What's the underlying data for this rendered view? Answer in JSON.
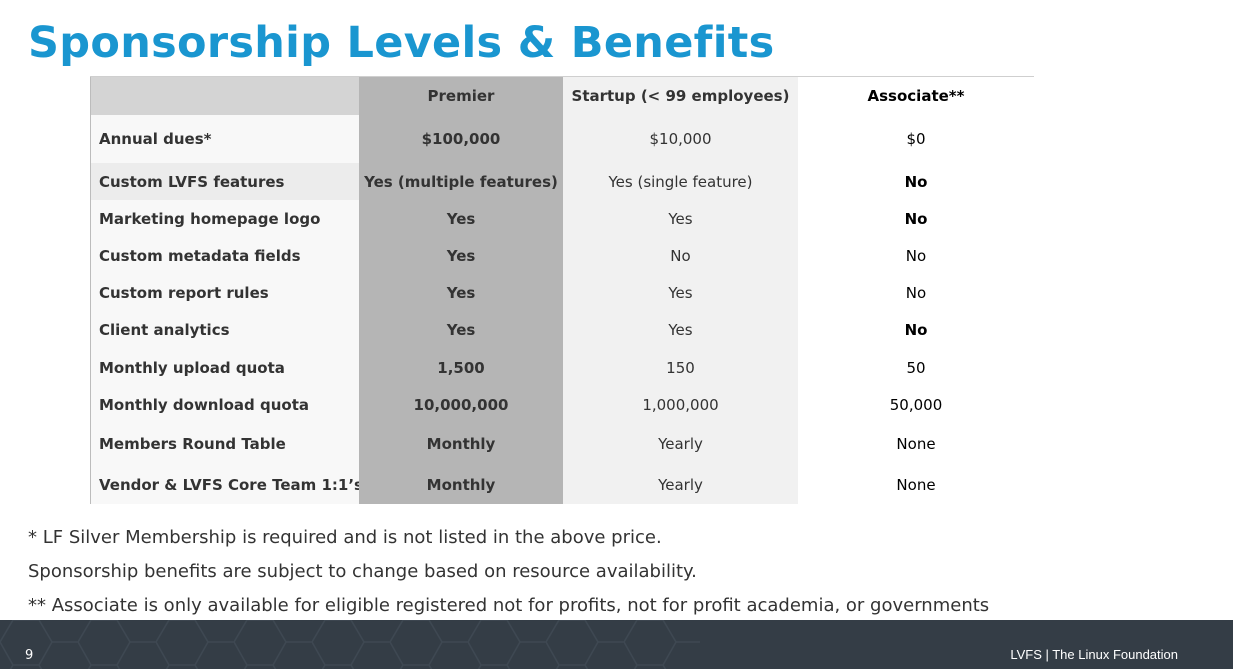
{
  "title": "Sponsorship Levels & Benefits",
  "table": {
    "headers": [
      "",
      "Premier",
      "Startup (< 99 employees)",
      "Associate**"
    ],
    "rows": [
      {
        "feature": "Annual dues*",
        "premier": "$100,000",
        "startup": "$10,000",
        "associate": "$0"
      },
      {
        "feature": "Custom LVFS features",
        "premier": "Yes (multiple features)",
        "startup": "Yes (single feature)",
        "associate": "No"
      },
      {
        "feature": "Marketing homepage logo",
        "premier": "Yes",
        "startup": "Yes",
        "associate": "No"
      },
      {
        "feature": "Custom metadata fields",
        "premier": "Yes",
        "startup": "No",
        "associate": "No"
      },
      {
        "feature": "Custom report rules",
        "premier": "Yes",
        "startup": "Yes",
        "associate": "No"
      },
      {
        "feature": "Client analytics",
        "premier": "Yes",
        "startup": "Yes",
        "associate": "No"
      },
      {
        "feature": "Monthly upload quota",
        "premier": "1,500",
        "startup": "150",
        "associate": "50"
      },
      {
        "feature": "Monthly download quota",
        "premier": "10,000,000",
        "startup": "1,000,000",
        "associate": "50,000"
      },
      {
        "feature": "Members Round Table",
        "premier": "Monthly",
        "startup": "Yearly",
        "associate": "None"
      },
      {
        "feature": "Vendor & LVFS Core Team 1:1’s",
        "premier": "Monthly",
        "startup": "Yearly",
        "associate": "None"
      }
    ]
  },
  "notes": [
    "* LF Silver Membership is required and is not listed in the above price.",
    "Sponsorship benefits are subject to change based on resource availability.",
    "** Associate is only available for eligible registered not for profits, not for profit academia, or governments"
  ],
  "footer": {
    "page_number": "9",
    "organization": "LVFS | The Linux Foundation"
  },
  "colors": {
    "title": "#1a96d0",
    "footer_bg": "#343d46",
    "premier_col": "#b5b5b5"
  }
}
